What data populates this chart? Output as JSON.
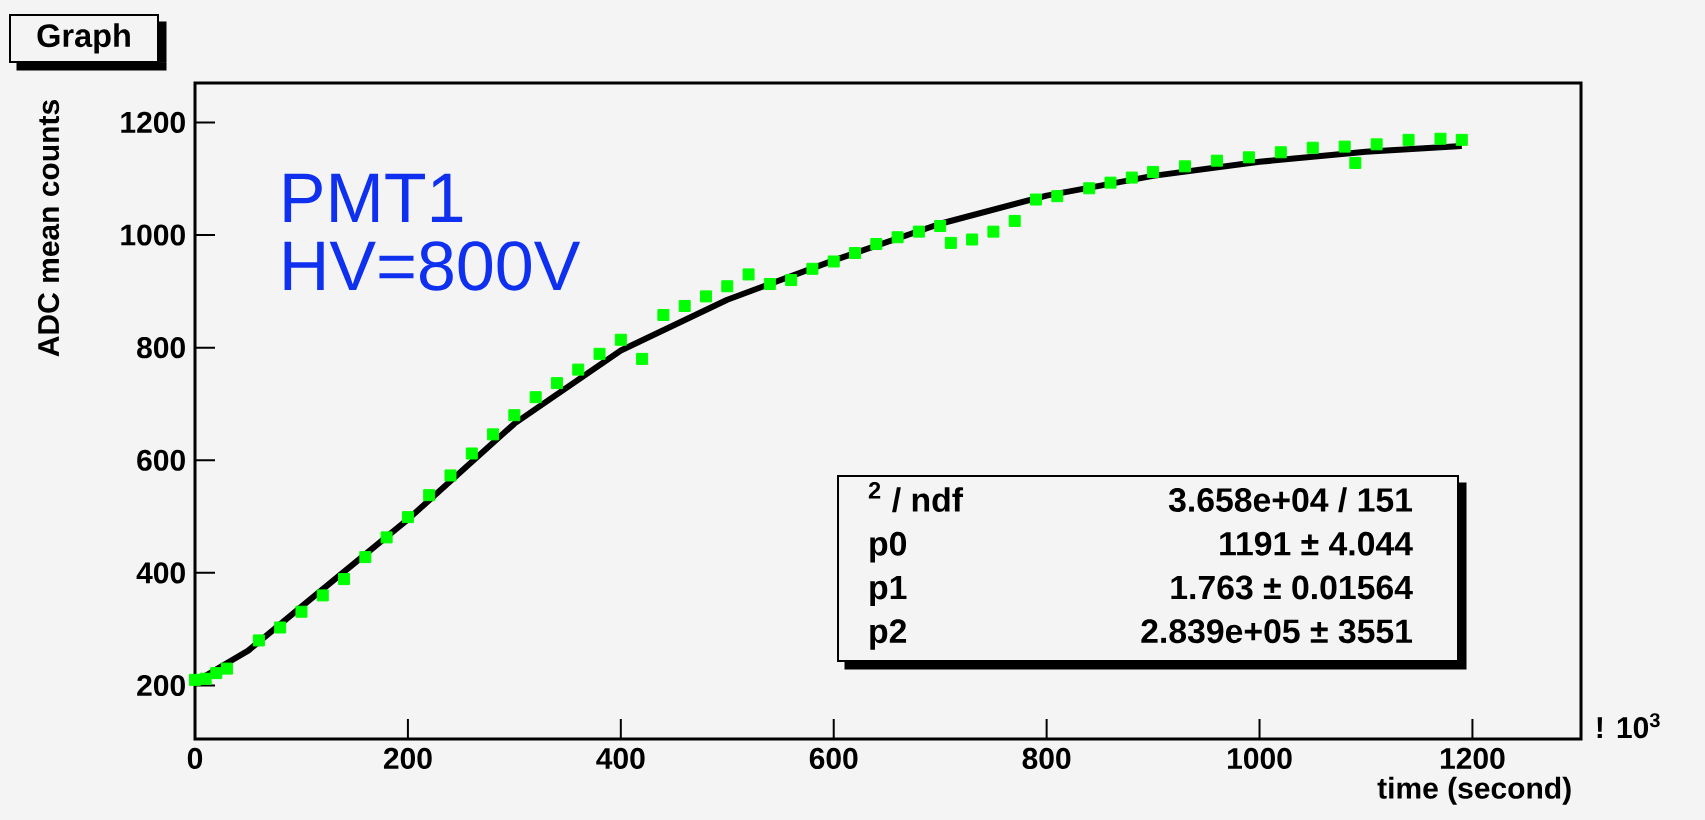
{
  "chart_data": {
    "type": "scatter",
    "title": "Graph",
    "xlabel": "time (second)",
    "ylabel": "ADC mean counts",
    "xlim": [
      0,
      1302
    ],
    "ylim": [
      105,
      1270
    ],
    "xticks": [
      0,
      200,
      400,
      600,
      800,
      1000,
      1200
    ],
    "yticks": [
      200,
      400,
      600,
      800,
      1000,
      1200
    ],
    "marker": "square",
    "series": [
      {
        "type": "scatter",
        "color": "#00ff00",
        "x": [
          0,
          10,
          20,
          30,
          60,
          80,
          100,
          120,
          140,
          160,
          180,
          200,
          220,
          240,
          260,
          280,
          300,
          320,
          340,
          360,
          380,
          400,
          420,
          440,
          460,
          480,
          500,
          520,
          540,
          560,
          580,
          600,
          620,
          640,
          660,
          680,
          700,
          710,
          730,
          750,
          770,
          790,
          810,
          840,
          860,
          880,
          900,
          930,
          960,
          990,
          1020,
          1050,
          1080,
          1090,
          1110,
          1140,
          1170,
          1190
        ],
        "values": [
          210,
          212,
          222,
          230,
          280,
          303,
          331,
          360,
          389,
          428,
          463,
          499,
          538,
          573,
          612,
          646,
          680,
          712,
          737,
          761,
          789,
          814,
          780,
          858,
          874,
          891,
          909,
          930,
          913,
          920,
          940,
          953,
          968,
          984,
          996,
          1006,
          1016,
          986,
          992,
          1006,
          1025,
          1063,
          1069,
          1083,
          1093,
          1102,
          1112,
          1122,
          1132,
          1138,
          1147,
          1155,
          1157,
          1128,
          1161,
          1169,
          1171,
          1169
        ]
      },
      {
        "type": "line",
        "marker": "none",
        "color": "#000000",
        "x": [
          5,
          50,
          100,
          200,
          300,
          400,
          500,
          600,
          700,
          800,
          900,
          1000,
          1100,
          1190
        ],
        "values": [
          212,
          262,
          340,
          495,
          665,
          795,
          885,
          955,
          1020,
          1070,
          1105,
          1130,
          1148,
          1158
        ]
      }
    ],
    "annotations": [
      "PMT1",
      "HV=800V",
      "$^{2}$ / ndf",
      "3.658e+04 / 151",
      "p0",
      "1191 ± 4.044",
      "p1",
      "1.763 ± 0.01564",
      "p2",
      "2.839e+05 ±  3551",
      "! 10$^{3}$"
    ]
  }
}
